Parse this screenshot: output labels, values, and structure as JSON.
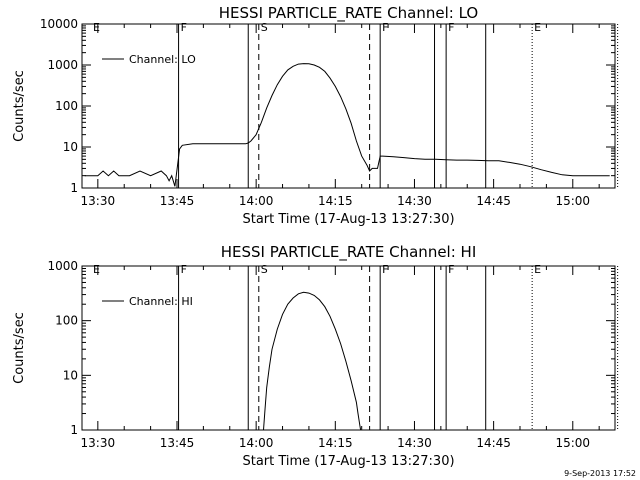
{
  "footer": {
    "stamp": "9-Sep-2013 17:52"
  },
  "chart_data": [
    {
      "type": "line",
      "title": "HESSI PARTICLE_RATE Channel: LO",
      "xlabel": "Start Time (17-Aug-13 13:27:30)",
      "ylabel": "Counts/sec",
      "y_scale": "log",
      "ylim": [
        1,
        10000
      ],
      "xlim_minutes": [
        -3,
        98
      ],
      "x_ticks": [
        {
          "t": 0,
          "label": "13:30"
        },
        {
          "t": 15,
          "label": "13:45"
        },
        {
          "t": 30,
          "label": "14:00"
        },
        {
          "t": 45,
          "label": "14:15"
        },
        {
          "t": 60,
          "label": "14:30"
        },
        {
          "t": 75,
          "label": "14:45"
        },
        {
          "t": 90,
          "label": "15:00"
        }
      ],
      "y_ticks": [
        {
          "v": 1,
          "label": "1"
        },
        {
          "v": 10,
          "label": "10"
        },
        {
          "v": 100,
          "label": "100"
        },
        {
          "v": 1000,
          "label": "1000"
        },
        {
          "v": 10000,
          "label": "10000"
        }
      ],
      "legend": {
        "position": "top-left",
        "entries": [
          "Channel: LO"
        ]
      },
      "event_markers": [
        {
          "t": -1.3,
          "label": "E",
          "style": "none"
        },
        {
          "t": 15.3,
          "label": "F",
          "style": "solid"
        },
        {
          "t": 28.5,
          "label": "",
          "style": "solid"
        },
        {
          "t": 30.5,
          "label": "S",
          "style": "dashed"
        },
        {
          "t": 51.5,
          "label": "",
          "style": "dashed"
        },
        {
          "t": 53.5,
          "label": "F",
          "style": "solid"
        },
        {
          "t": 63.8,
          "label": "",
          "style": "solid"
        },
        {
          "t": 66.0,
          "label": "F",
          "style": "solid"
        },
        {
          "t": 73.5,
          "label": "",
          "style": "solid"
        },
        {
          "t": 82.3,
          "label": "E",
          "style": "dotted"
        },
        {
          "t": 98.5,
          "label": "",
          "style": "dotted"
        }
      ],
      "series": [
        {
          "name": "Channel: LO",
          "x": [
            -2.5,
            0,
            1,
            2,
            3,
            4,
            6,
            8,
            10,
            12,
            13,
            13.5,
            14,
            14.6,
            15,
            15.5,
            16,
            18,
            20,
            22,
            24,
            26,
            28,
            28.5,
            29,
            30,
            31,
            32,
            33,
            34,
            35,
            36,
            37,
            38,
            39,
            40,
            41,
            42,
            43,
            44,
            45,
            46,
            47,
            48,
            49,
            50,
            51,
            51.5,
            52,
            53,
            53.5,
            54,
            56,
            58,
            60,
            62,
            64,
            66,
            68,
            70,
            72,
            74,
            76,
            78,
            80,
            82,
            84,
            86,
            88,
            90,
            92,
            94,
            96,
            97
          ],
          "y": [
            2,
            2,
            2.6,
            2,
            2.6,
            2,
            2,
            2.6,
            2,
            2.6,
            2,
            1.5,
            2,
            1.1,
            2.8,
            9,
            11,
            12,
            12,
            12,
            12,
            12,
            12,
            12.5,
            14,
            20,
            40,
            90,
            180,
            330,
            530,
            760,
            930,
            1050,
            1080,
            1070,
            1000,
            880,
            700,
            480,
            300,
            170,
            85,
            38,
            14,
            6,
            3.6,
            2.6,
            3,
            3,
            6,
            6,
            5.8,
            5.5,
            5.2,
            5,
            5,
            4.9,
            4.8,
            4.8,
            4.7,
            4.6,
            4.6,
            4.2,
            3.8,
            3.3,
            2.8,
            2.4,
            2.1,
            2,
            2,
            2,
            2,
            2
          ]
        }
      ]
    },
    {
      "type": "line",
      "title": "HESSI PARTICLE_RATE Channel: HI",
      "xlabel": "Start Time (17-Aug-13 13:27:30)",
      "ylabel": "Counts/sec",
      "y_scale": "log",
      "ylim": [
        1,
        1000
      ],
      "xlim_minutes": [
        -3,
        98
      ],
      "x_ticks": [
        {
          "t": 0,
          "label": "13:30"
        },
        {
          "t": 15,
          "label": "13:45"
        },
        {
          "t": 30,
          "label": "14:00"
        },
        {
          "t": 45,
          "label": "14:15"
        },
        {
          "t": 60,
          "label": "14:30"
        },
        {
          "t": 75,
          "label": "14:45"
        },
        {
          "t": 90,
          "label": "15:00"
        }
      ],
      "y_ticks": [
        {
          "v": 1,
          "label": "1"
        },
        {
          "v": 10,
          "label": "10"
        },
        {
          "v": 100,
          "label": "100"
        },
        {
          "v": 1000,
          "label": "1000"
        }
      ],
      "legend": {
        "position": "top-left",
        "entries": [
          "Channel: HI"
        ]
      },
      "event_markers": [
        {
          "t": -1.3,
          "label": "E",
          "style": "none"
        },
        {
          "t": 15.3,
          "label": "F",
          "style": "solid"
        },
        {
          "t": 28.5,
          "label": "",
          "style": "solid"
        },
        {
          "t": 30.5,
          "label": "S",
          "style": "dashed"
        },
        {
          "t": 51.5,
          "label": "",
          "style": "dashed"
        },
        {
          "t": 53.5,
          "label": "F",
          "style": "solid"
        },
        {
          "t": 63.8,
          "label": "",
          "style": "solid"
        },
        {
          "t": 66.0,
          "label": "F",
          "style": "solid"
        },
        {
          "t": 73.5,
          "label": "",
          "style": "solid"
        },
        {
          "t": 82.3,
          "label": "E",
          "style": "dotted"
        },
        {
          "t": 98.5,
          "label": "",
          "style": "dotted"
        }
      ],
      "series": [
        {
          "name": "Channel: HI",
          "x": [
            31.4,
            31.7,
            32,
            32.5,
            33,
            34,
            35,
            36,
            37,
            38,
            39,
            40,
            41,
            42,
            43,
            44,
            45,
            46,
            47,
            48,
            49,
            49.3,
            49.6,
            49.8
          ],
          "y": [
            1,
            2.5,
            6,
            14,
            30,
            70,
            130,
            200,
            260,
            310,
            330,
            320,
            290,
            240,
            180,
            120,
            70,
            38,
            18,
            8,
            3.2,
            2,
            1.3,
            1
          ]
        }
      ]
    }
  ]
}
